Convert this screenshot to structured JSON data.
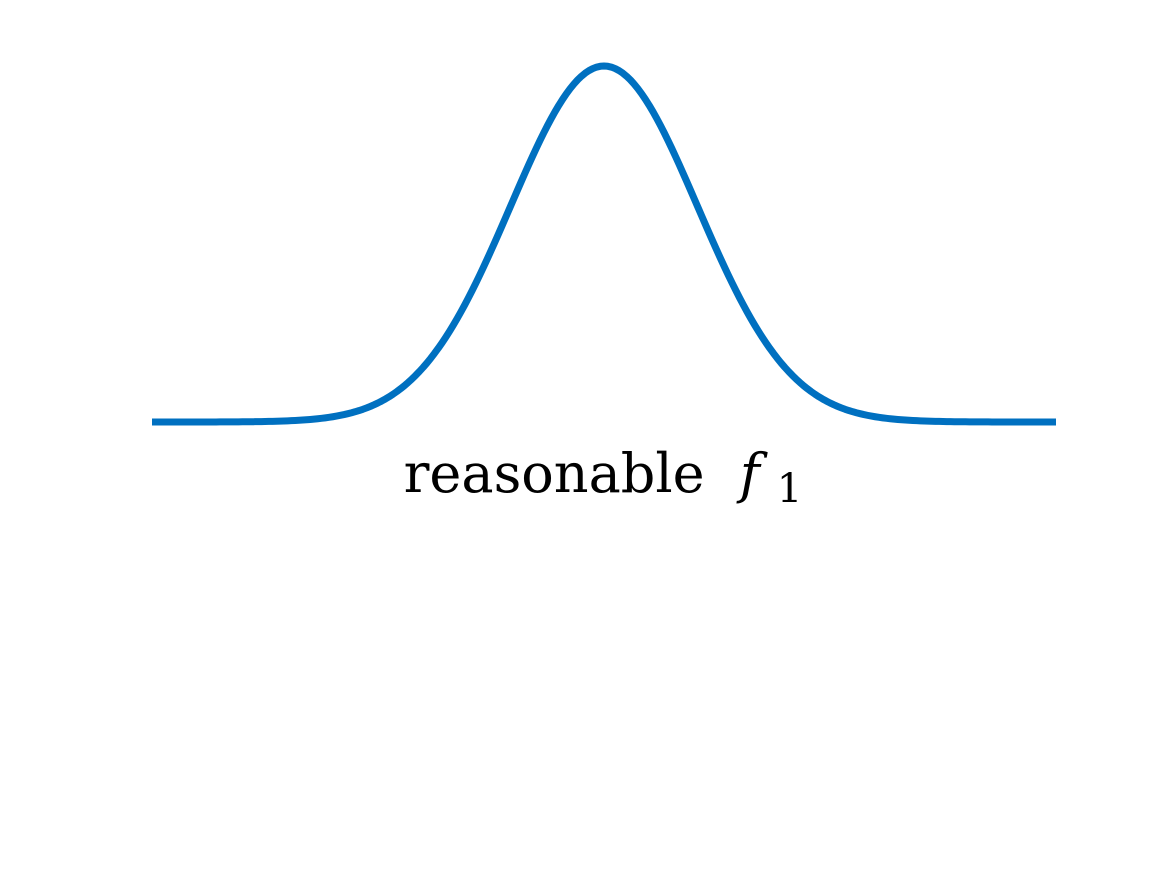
{
  "chart_data": {
    "type": "line",
    "title": "",
    "xlabel": "",
    "ylabel": "",
    "xlim": [
      -3,
      3
    ],
    "ylim": [
      0,
      1
    ],
    "grid": false,
    "axes_visible": false,
    "series": [
      {
        "color": "#0070c0",
        "shape": "gaussian",
        "x": [
          -3.0,
          -2.5,
          -2.0,
          -1.75,
          -1.5,
          -1.25,
          -1.0,
          -0.75,
          -0.5,
          -0.25,
          0.0,
          0.25,
          0.5,
          0.75,
          1.0,
          1.25,
          1.5,
          1.75,
          2.0,
          2.5,
          3.0
        ],
        "y": [
          0.0,
          0.01,
          0.04,
          0.09,
          0.15,
          0.28,
          0.44,
          0.62,
          0.81,
          0.95,
          1.0,
          0.95,
          0.81,
          0.62,
          0.44,
          0.28,
          0.15,
          0.09,
          0.04,
          0.01,
          0.0
        ]
      }
    ],
    "annotation": {
      "text": "reasonable",
      "math_symbol": "f",
      "math_subscript": "1"
    }
  }
}
